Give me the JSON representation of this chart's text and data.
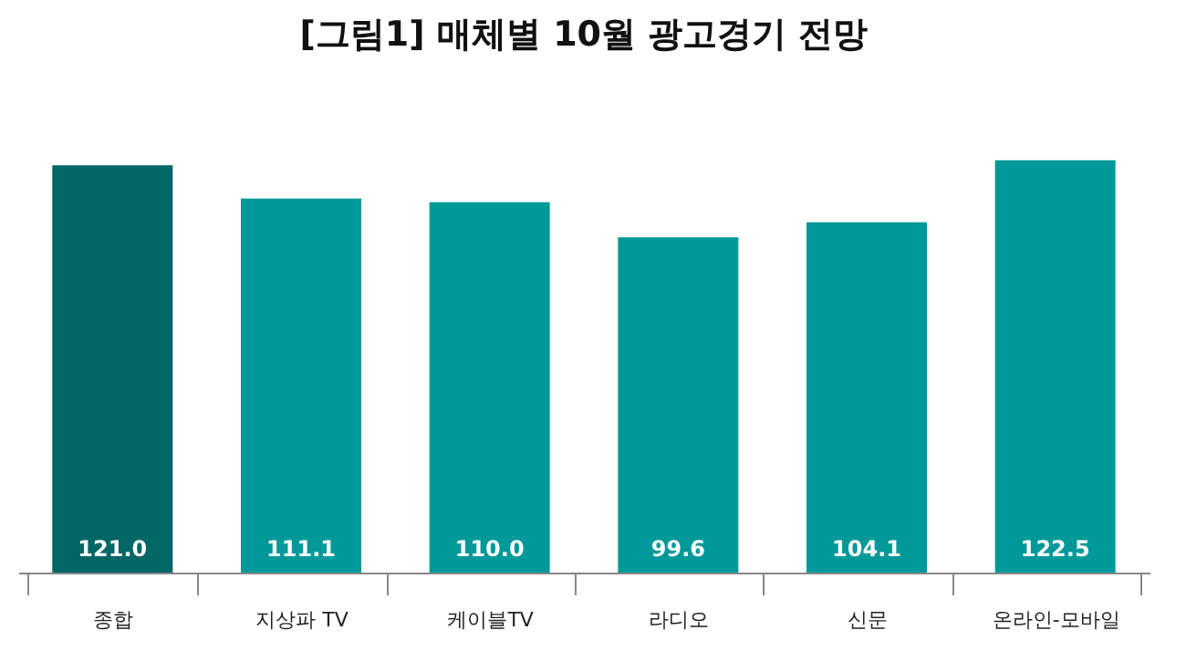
{
  "chart_data": {
    "type": "bar",
    "title": "[그림1] 매체별 10월 광고경기 전망",
    "categories": [
      "종합",
      "지상파 TV",
      "케이블TV",
      "라디오",
      "신문",
      "온라인-모바일"
    ],
    "values": [
      121.0,
      111.1,
      110.0,
      99.6,
      104.1,
      122.5
    ],
    "value_labels": [
      "121.0",
      "111.1",
      "110.0",
      "99.6",
      "104.1",
      "122.5"
    ],
    "colors": [
      "#006666",
      "#009999",
      "#009999",
      "#009999",
      "#009999",
      "#009999"
    ]
  }
}
